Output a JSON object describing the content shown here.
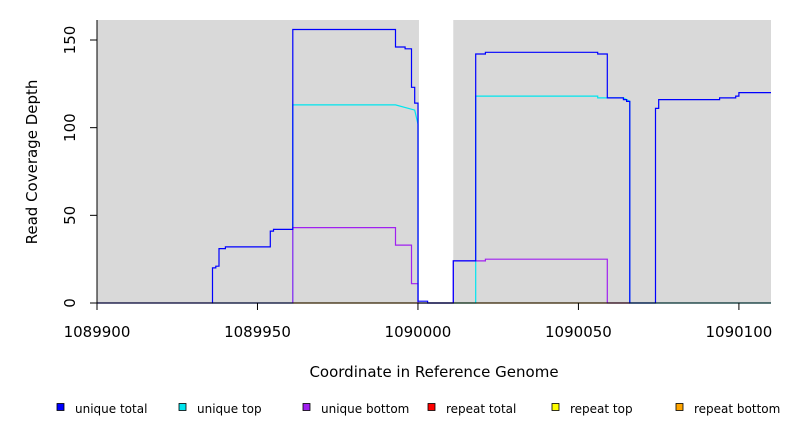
{
  "chart_data": {
    "type": "line",
    "title": "",
    "xlabel": "Coordinate in Reference Genome",
    "ylabel": "Read Coverage Depth",
    "xlim": [
      1089900,
      1090110
    ],
    "ylim": [
      0,
      160
    ],
    "x_ticks": [
      1089900,
      1089950,
      1090000,
      1090050,
      1090100
    ],
    "x_tick_labels": [
      "1089900",
      "1089950",
      "1090000",
      "1090050",
      "1090100"
    ],
    "y_ticks": [
      0,
      50,
      100,
      150
    ],
    "y_tick_labels": [
      "0",
      "50",
      "100",
      "150"
    ],
    "grid": false,
    "plot_background": "#d9d9d9",
    "gap_region": [
      1090000,
      1090011
    ],
    "legend_placement": "bottom",
    "series": [
      {
        "name": "unique total",
        "color": "#0000ff",
        "points": [
          [
            1089900,
            0
          ],
          [
            1089936,
            0
          ],
          [
            1089936,
            20
          ],
          [
            1089937,
            20
          ],
          [
            1089937,
            21
          ],
          [
            1089938,
            21
          ],
          [
            1089938,
            31
          ],
          [
            1089940,
            31
          ],
          [
            1089940,
            32
          ],
          [
            1089954,
            32
          ],
          [
            1089954,
            41
          ],
          [
            1089955,
            41
          ],
          [
            1089955,
            42
          ],
          [
            1089961,
            42
          ],
          [
            1089961,
            156
          ],
          [
            1089993,
            156
          ],
          [
            1089993,
            146
          ],
          [
            1089996,
            146
          ],
          [
            1089996,
            145
          ],
          [
            1089998,
            145
          ],
          [
            1089998,
            123
          ],
          [
            1089999,
            123
          ],
          [
            1089999,
            114
          ],
          [
            1090000,
            114
          ],
          [
            1090000,
            1
          ],
          [
            1090003,
            1
          ],
          [
            1090003,
            0
          ],
          [
            1090011,
            0
          ],
          [
            1090011,
            24
          ],
          [
            1090018,
            24
          ],
          [
            1090018,
            142
          ],
          [
            1090021,
            142
          ],
          [
            1090021,
            143
          ],
          [
            1090056,
            143
          ],
          [
            1090056,
            142
          ],
          [
            1090059,
            142
          ],
          [
            1090059,
            117
          ],
          [
            1090064,
            117
          ],
          [
            1090064,
            116
          ],
          [
            1090065,
            116
          ],
          [
            1090065,
            115
          ],
          [
            1090066,
            115
          ],
          [
            1090066,
            0
          ],
          [
            1090074,
            0
          ],
          [
            1090074,
            111
          ],
          [
            1090075,
            111
          ],
          [
            1090075,
            116
          ],
          [
            1090094,
            116
          ],
          [
            1090094,
            117
          ],
          [
            1090099,
            117
          ],
          [
            1090099,
            118
          ],
          [
            1090100,
            118
          ],
          [
            1090100,
            120
          ],
          [
            1090110,
            120
          ]
        ]
      },
      {
        "name": "unique top",
        "color": "#00e5ee",
        "points": [
          [
            1089936,
            0
          ],
          [
            1089961,
            0
          ],
          [
            1089961,
            113
          ],
          [
            1089993,
            113
          ],
          [
            1089999,
            110
          ],
          [
            1090000,
            102
          ],
          [
            1090000,
            0
          ],
          [
            1090018,
            0
          ],
          [
            1090018,
            118
          ],
          [
            1090056,
            118
          ],
          [
            1090056,
            117
          ],
          [
            1090064,
            117
          ],
          [
            1090066,
            115
          ],
          [
            1090066,
            0
          ],
          [
            1090074,
            0
          ],
          [
            1090110,
            0
          ]
        ]
      },
      {
        "name": "unique bottom",
        "color": "#a020f0",
        "points": [
          [
            1089936,
            0
          ],
          [
            1089961,
            0
          ],
          [
            1089961,
            43
          ],
          [
            1089993,
            43
          ],
          [
            1089993,
            33
          ],
          [
            1089998,
            33
          ],
          [
            1089998,
            11
          ],
          [
            1090000,
            11
          ],
          [
            1090000,
            0
          ],
          [
            1090011,
            0
          ],
          [
            1090011,
            24
          ],
          [
            1090021,
            24
          ],
          [
            1090021,
            25
          ],
          [
            1090059,
            25
          ],
          [
            1090059,
            0
          ],
          [
            1090066,
            0
          ]
        ]
      },
      {
        "name": "repeat total",
        "color": "#ff0000",
        "points": []
      },
      {
        "name": "repeat top",
        "color": "#ffff00",
        "points": []
      },
      {
        "name": "repeat bottom",
        "color": "#ffa500",
        "points": [
          [
            1089961,
            0
          ],
          [
            1090000,
            0
          ],
          [
            1090018,
            0
          ],
          [
            1090066,
            0
          ]
        ]
      }
    ]
  }
}
